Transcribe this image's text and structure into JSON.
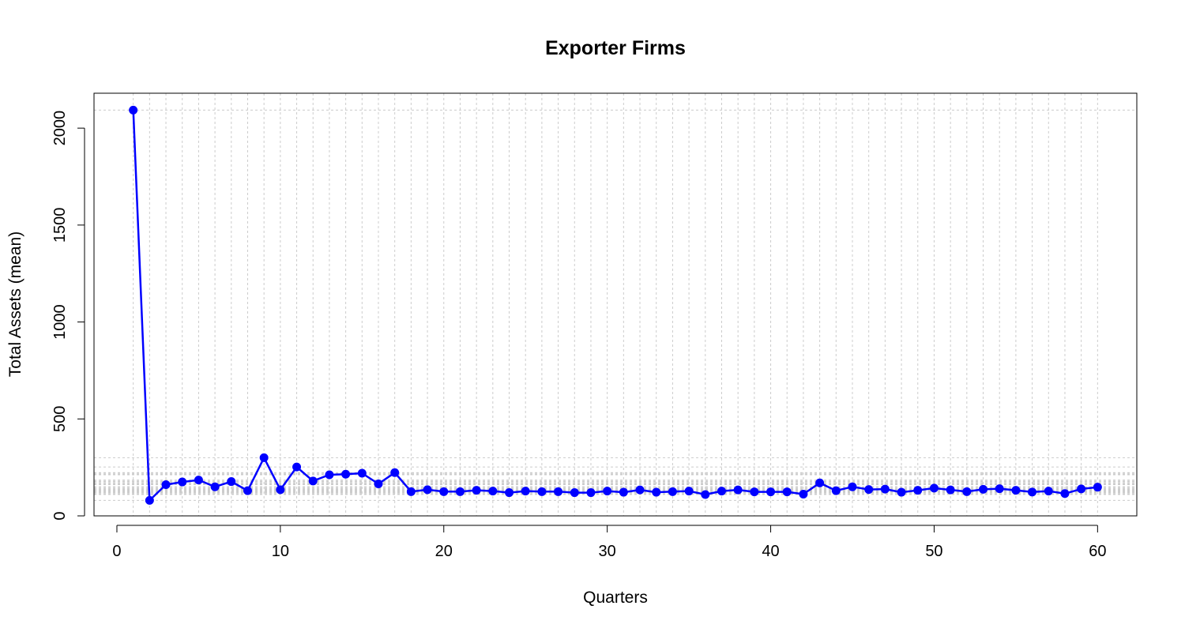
{
  "chart_data": {
    "type": "line",
    "title": "Exporter Firms",
    "xlabel": "Quarters",
    "ylabel": "Total Assets (mean)",
    "xlim": [
      -1.4,
      62.4
    ],
    "ylim": [
      0,
      2180
    ],
    "x_ticks": [
      0,
      10,
      20,
      30,
      40,
      50,
      60
    ],
    "y_ticks": [
      0,
      500,
      1000,
      1500,
      2000
    ],
    "x_tick_labels": [
      "0",
      "10",
      "20",
      "30",
      "40",
      "50",
      "60"
    ],
    "y_tick_labels": [
      "0",
      "500",
      "1000",
      "1500",
      "2000"
    ],
    "grid": true,
    "legend": "none",
    "color": "#0000ff",
    "grid_color": "#cccccc",
    "series": [
      {
        "x": [
          1,
          2,
          3,
          4,
          5,
          6,
          7,
          8,
          9,
          10,
          11,
          12,
          13,
          14,
          15,
          16,
          17,
          18,
          19,
          20,
          21,
          22,
          23,
          24,
          25,
          26,
          27,
          28,
          29,
          30,
          31,
          32,
          33,
          34,
          35,
          36,
          37,
          38,
          39,
          40,
          41,
          42,
          43,
          44,
          45,
          46,
          47,
          48,
          49,
          50,
          51,
          52,
          53,
          54,
          55,
          56,
          57,
          58,
          59,
          60
        ],
        "values": [
          2093,
          80,
          161,
          175,
          185,
          150,
          177,
          130,
          300,
          135,
          252,
          180,
          212,
          215,
          220,
          165,
          223,
          125,
          135,
          125,
          125,
          132,
          128,
          120,
          128,
          125,
          125,
          120,
          120,
          128,
          122,
          134,
          122,
          125,
          128,
          110,
          128,
          134,
          124,
          124,
          124,
          112,
          170,
          130,
          150,
          136,
          138,
          122,
          132,
          143,
          134,
          125,
          137,
          140,
          132,
          123,
          128,
          115,
          139,
          148
        ]
      }
    ]
  }
}
